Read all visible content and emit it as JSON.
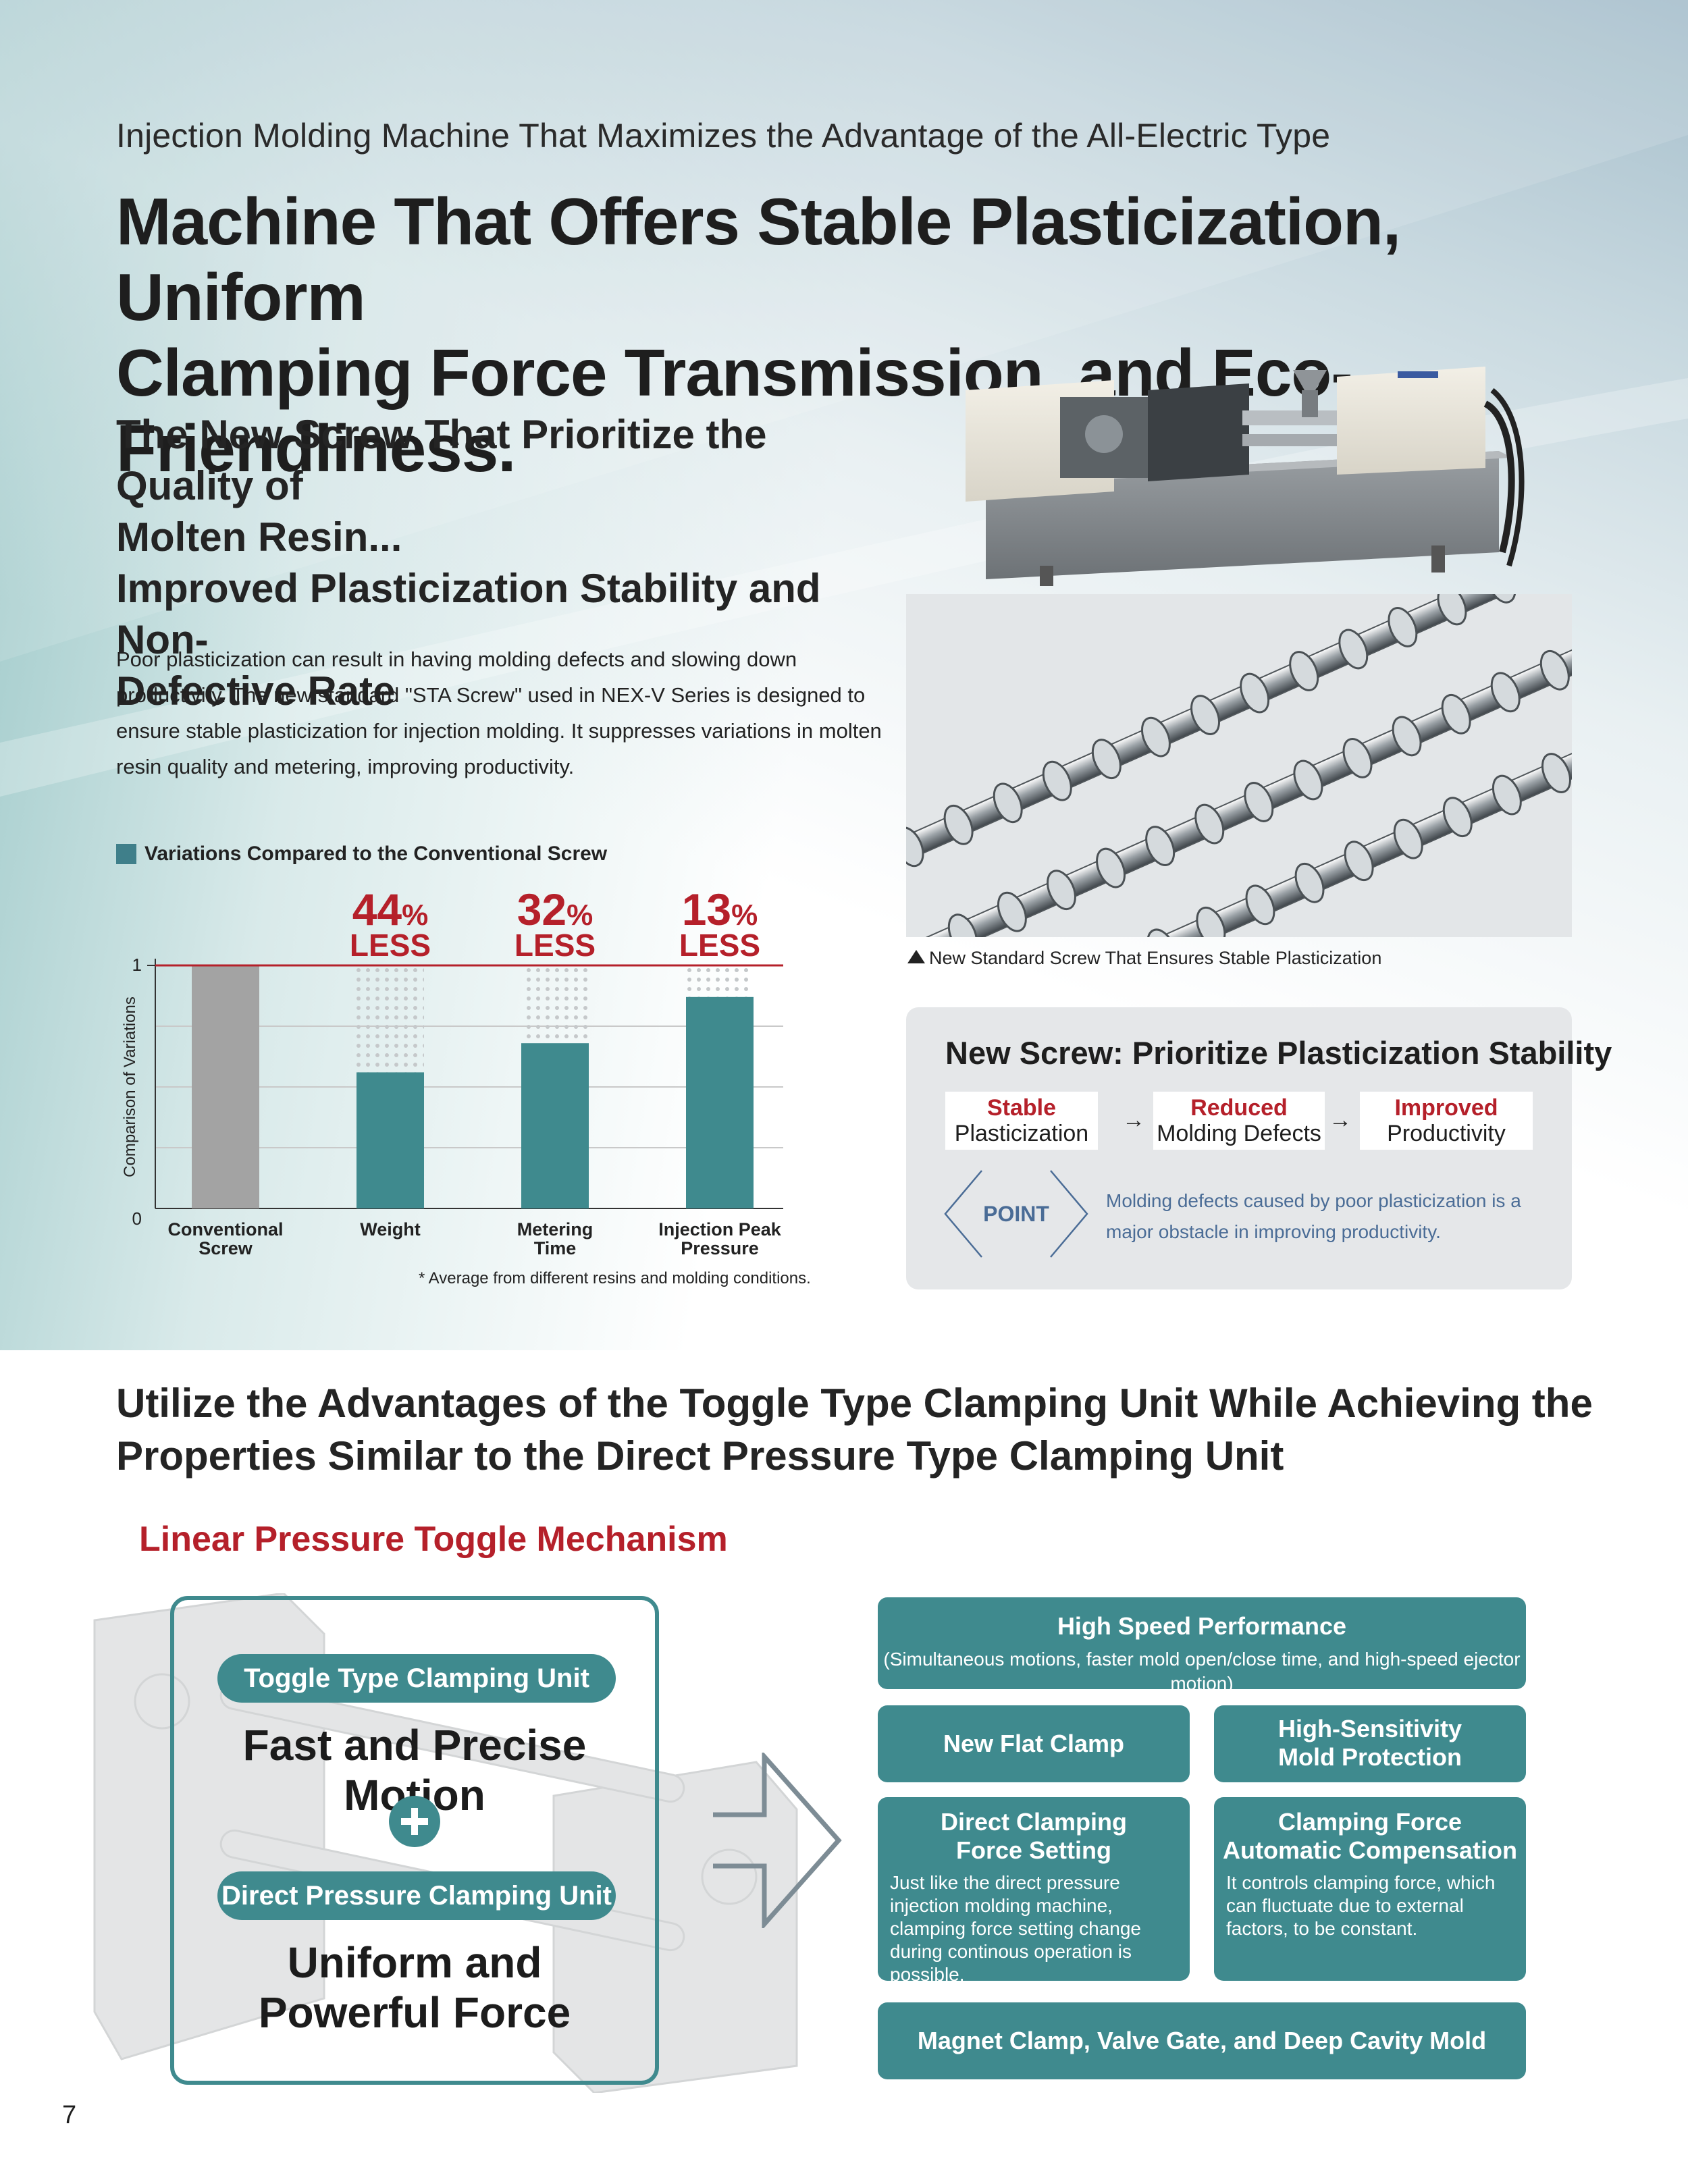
{
  "header": {
    "kicker": "Injection Molding Machine That Maximizes the Advantage of the All-Electric Type",
    "headline_line1": "Machine That Offers Stable Plasticization, Uniform",
    "headline_line2": "Clamping Force Transmission, and Eco-Friendliness."
  },
  "section1": {
    "title_line1": "The New Screw That Prioritize the Quality of",
    "title_line2": "Molten Resin...",
    "title_line3": "Improved Plasticization Stability and Non-",
    "title_line4": "Defective Rate",
    "body": "Poor plasticization can result in having molding defects and slowing down productivity. The new standard \"STA Screw\" used in NEX-V Series is designed to ensure stable plasticization for injection molding.  It suppresses variations in molten resin quality and metering, improving productivity.",
    "photo_caption": "New Standard Screw That Ensures Stable Plasticization"
  },
  "chart": {
    "legend": "Variations Compared to the Conventional Screw",
    "note": "* Average from different resins and molding conditions."
  },
  "chart_data": {
    "type": "bar",
    "categories": [
      "Conventional Screw",
      "Weight",
      "Metering Time",
      "Injection Peak Pressure"
    ],
    "values": [
      1.0,
      0.56,
      0.68,
      0.87
    ],
    "reductions": [
      null,
      "44",
      "32",
      "13"
    ],
    "reduction_unit": "%",
    "reduction_word": "LESS",
    "ylabel": "Comparison of Variations",
    "yticks": [
      "1",
      "0"
    ],
    "ylim": [
      0,
      1
    ],
    "colors": {
      "conventional": "#a3a3a3",
      "new": "#3f8a8e",
      "reference": "#b5202a"
    }
  },
  "screw_box": {
    "title": "New Screw: Prioritize Plasticization Stability",
    "flow": [
      {
        "red": "Stable",
        "black": "Plasticization"
      },
      {
        "red": "Reduced",
        "black": "Molding Defects"
      },
      {
        "red": "Improved",
        "black": "Productivity"
      }
    ],
    "arrow": "→",
    "point_label": "POINT",
    "point_text": "Molding defects caused by poor plasticization is a major obstacle in improving productivity."
  },
  "section2": {
    "title_line1": "Utilize the Advantages of the Toggle Type Clamping Unit While Achieving the",
    "title_line2": "Properties Similar to the Direct Pressure Type Clamping Unit",
    "mechanism_title": "Linear Pressure Toggle Mechanism",
    "toggle_pill": "Toggle Type Clamping Unit",
    "toggle_big": "Fast and Precise Motion",
    "direct_pill": "Direct Pressure Clamping Unit",
    "direct_big_line1": "Uniform and",
    "direct_big_line2": "Powerful Force"
  },
  "features": {
    "high_speed_title": "High Speed Performance",
    "high_speed_sub": "(Simultaneous motions, faster mold open/close time, and high-speed ejector motion)",
    "flat_clamp": "New Flat Clamp",
    "mold_protection_line1": "High-Sensitivity",
    "mold_protection_line2": "Mold Protection",
    "direct_setting_line1": "Direct Clamping",
    "direct_setting_line2": "Force Setting",
    "direct_setting_desc": "Just like the direct pressure injection molding machine, clamping force setting change during continous operation is possible.",
    "compensation_line1": "Clamping Force",
    "compensation_line2": "Automatic Compensation",
    "compensation_desc": "It controls clamping force, which can fluctuate due to external factors, to be constant.",
    "magnet": "Magnet Clamp, Valve Gate, and Deep Cavity Mold"
  },
  "page_number": "7"
}
